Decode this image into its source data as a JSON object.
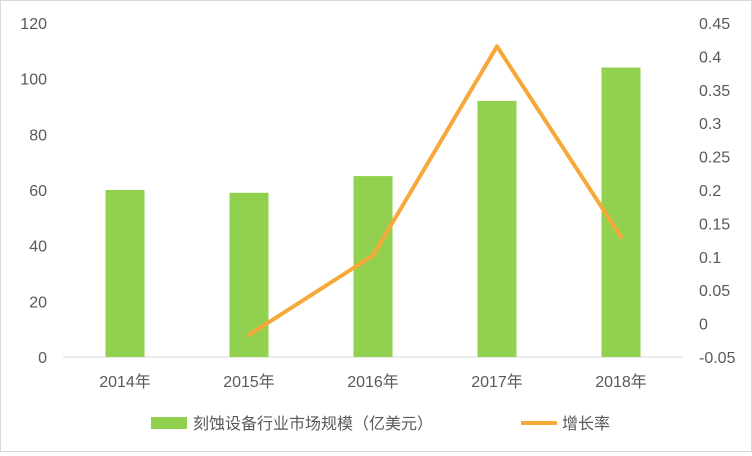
{
  "chart_data": {
    "type": "bar+line",
    "categories": [
      "2014年",
      "2015年",
      "2016年",
      "2017年",
      "2018年"
    ],
    "series": [
      {
        "name": "刻蚀设备行业市场规模（亿美元）",
        "type": "bar",
        "axis": "left",
        "color": "#92d050",
        "values": [
          60,
          59,
          65,
          92,
          104
        ]
      },
      {
        "name": "增长率",
        "type": "line",
        "axis": "right",
        "color": "#f8a839",
        "values": [
          null,
          -0.017,
          0.102,
          0.415,
          0.13
        ]
      }
    ],
    "y_left": {
      "min": 0,
      "max": 120,
      "step": 20,
      "tick_labels": [
        "0",
        "20",
        "40",
        "60",
        "80",
        "100",
        "120"
      ]
    },
    "y_right": {
      "min": -0.05,
      "max": 0.45,
      "step": 0.05,
      "tick_labels": [
        "-0.05",
        "0",
        "0.05",
        "0.1",
        "0.15",
        "0.2",
        "0.25",
        "0.3",
        "0.35",
        "0.4",
        "0.45"
      ]
    },
    "grid": false,
    "legend_position": "bottom"
  }
}
